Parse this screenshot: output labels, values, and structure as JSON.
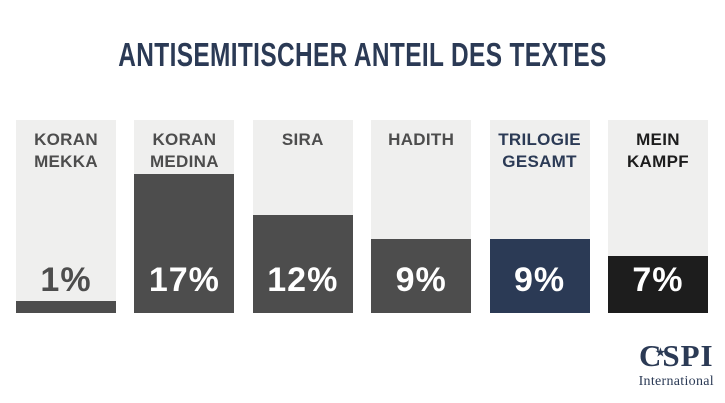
{
  "title": "ANTISEMITISCHER ANTEIL DES TEXTES",
  "chart_data": {
    "type": "bar",
    "title": "ANTISEMITISCHER ANTEIL DES TEXTES",
    "categories": [
      "KORAN MEKKA",
      "KORAN MEDINA",
      "SIRA",
      "HADITH",
      "TRILOGIE GESAMT",
      "MEIN KAMPF"
    ],
    "values": [
      1,
      17,
      12,
      9,
      9,
      7
    ],
    "value_labels": [
      "1%",
      "17%",
      "12%",
      "9%",
      "9%",
      "7%"
    ],
    "unit": "%",
    "ylim": [
      0,
      20
    ],
    "grid": false,
    "legend": "none",
    "orientation": "vertical",
    "bar_styles": [
      {
        "fill": "#4d4d4d",
        "label_color": "#4d4d4d",
        "value_color": "#4d4d4d",
        "value_position": "above-fill"
      },
      {
        "fill": "#4d4d4d",
        "label_color": "#4d4d4d",
        "value_color": "#ffffff",
        "value_position": "inside-fill"
      },
      {
        "fill": "#4d4d4d",
        "label_color": "#4d4d4d",
        "value_color": "#ffffff",
        "value_position": "inside-fill"
      },
      {
        "fill": "#4d4d4d",
        "label_color": "#4d4d4d",
        "value_color": "#ffffff",
        "value_position": "inside-fill"
      },
      {
        "fill": "#2b3a55",
        "label_color": "#2b3a55",
        "value_color": "#ffffff",
        "value_position": "inside-fill"
      },
      {
        "fill": "#1d1d1d",
        "label_color": "#1d1d1d",
        "value_color": "#ffffff",
        "value_position": "inside-fill"
      }
    ]
  },
  "logo": {
    "text_c": "C",
    "star": "★",
    "text_rest": "SPI",
    "subtitle": "International"
  },
  "colors": {
    "background": "#ffffff",
    "title_text": "#2b3a55",
    "column_background": "#efefee",
    "dark_gray": "#4d4d4d",
    "navy": "#2b3a55",
    "black": "#1d1d1d",
    "value_text_light": "#ffffff"
  }
}
